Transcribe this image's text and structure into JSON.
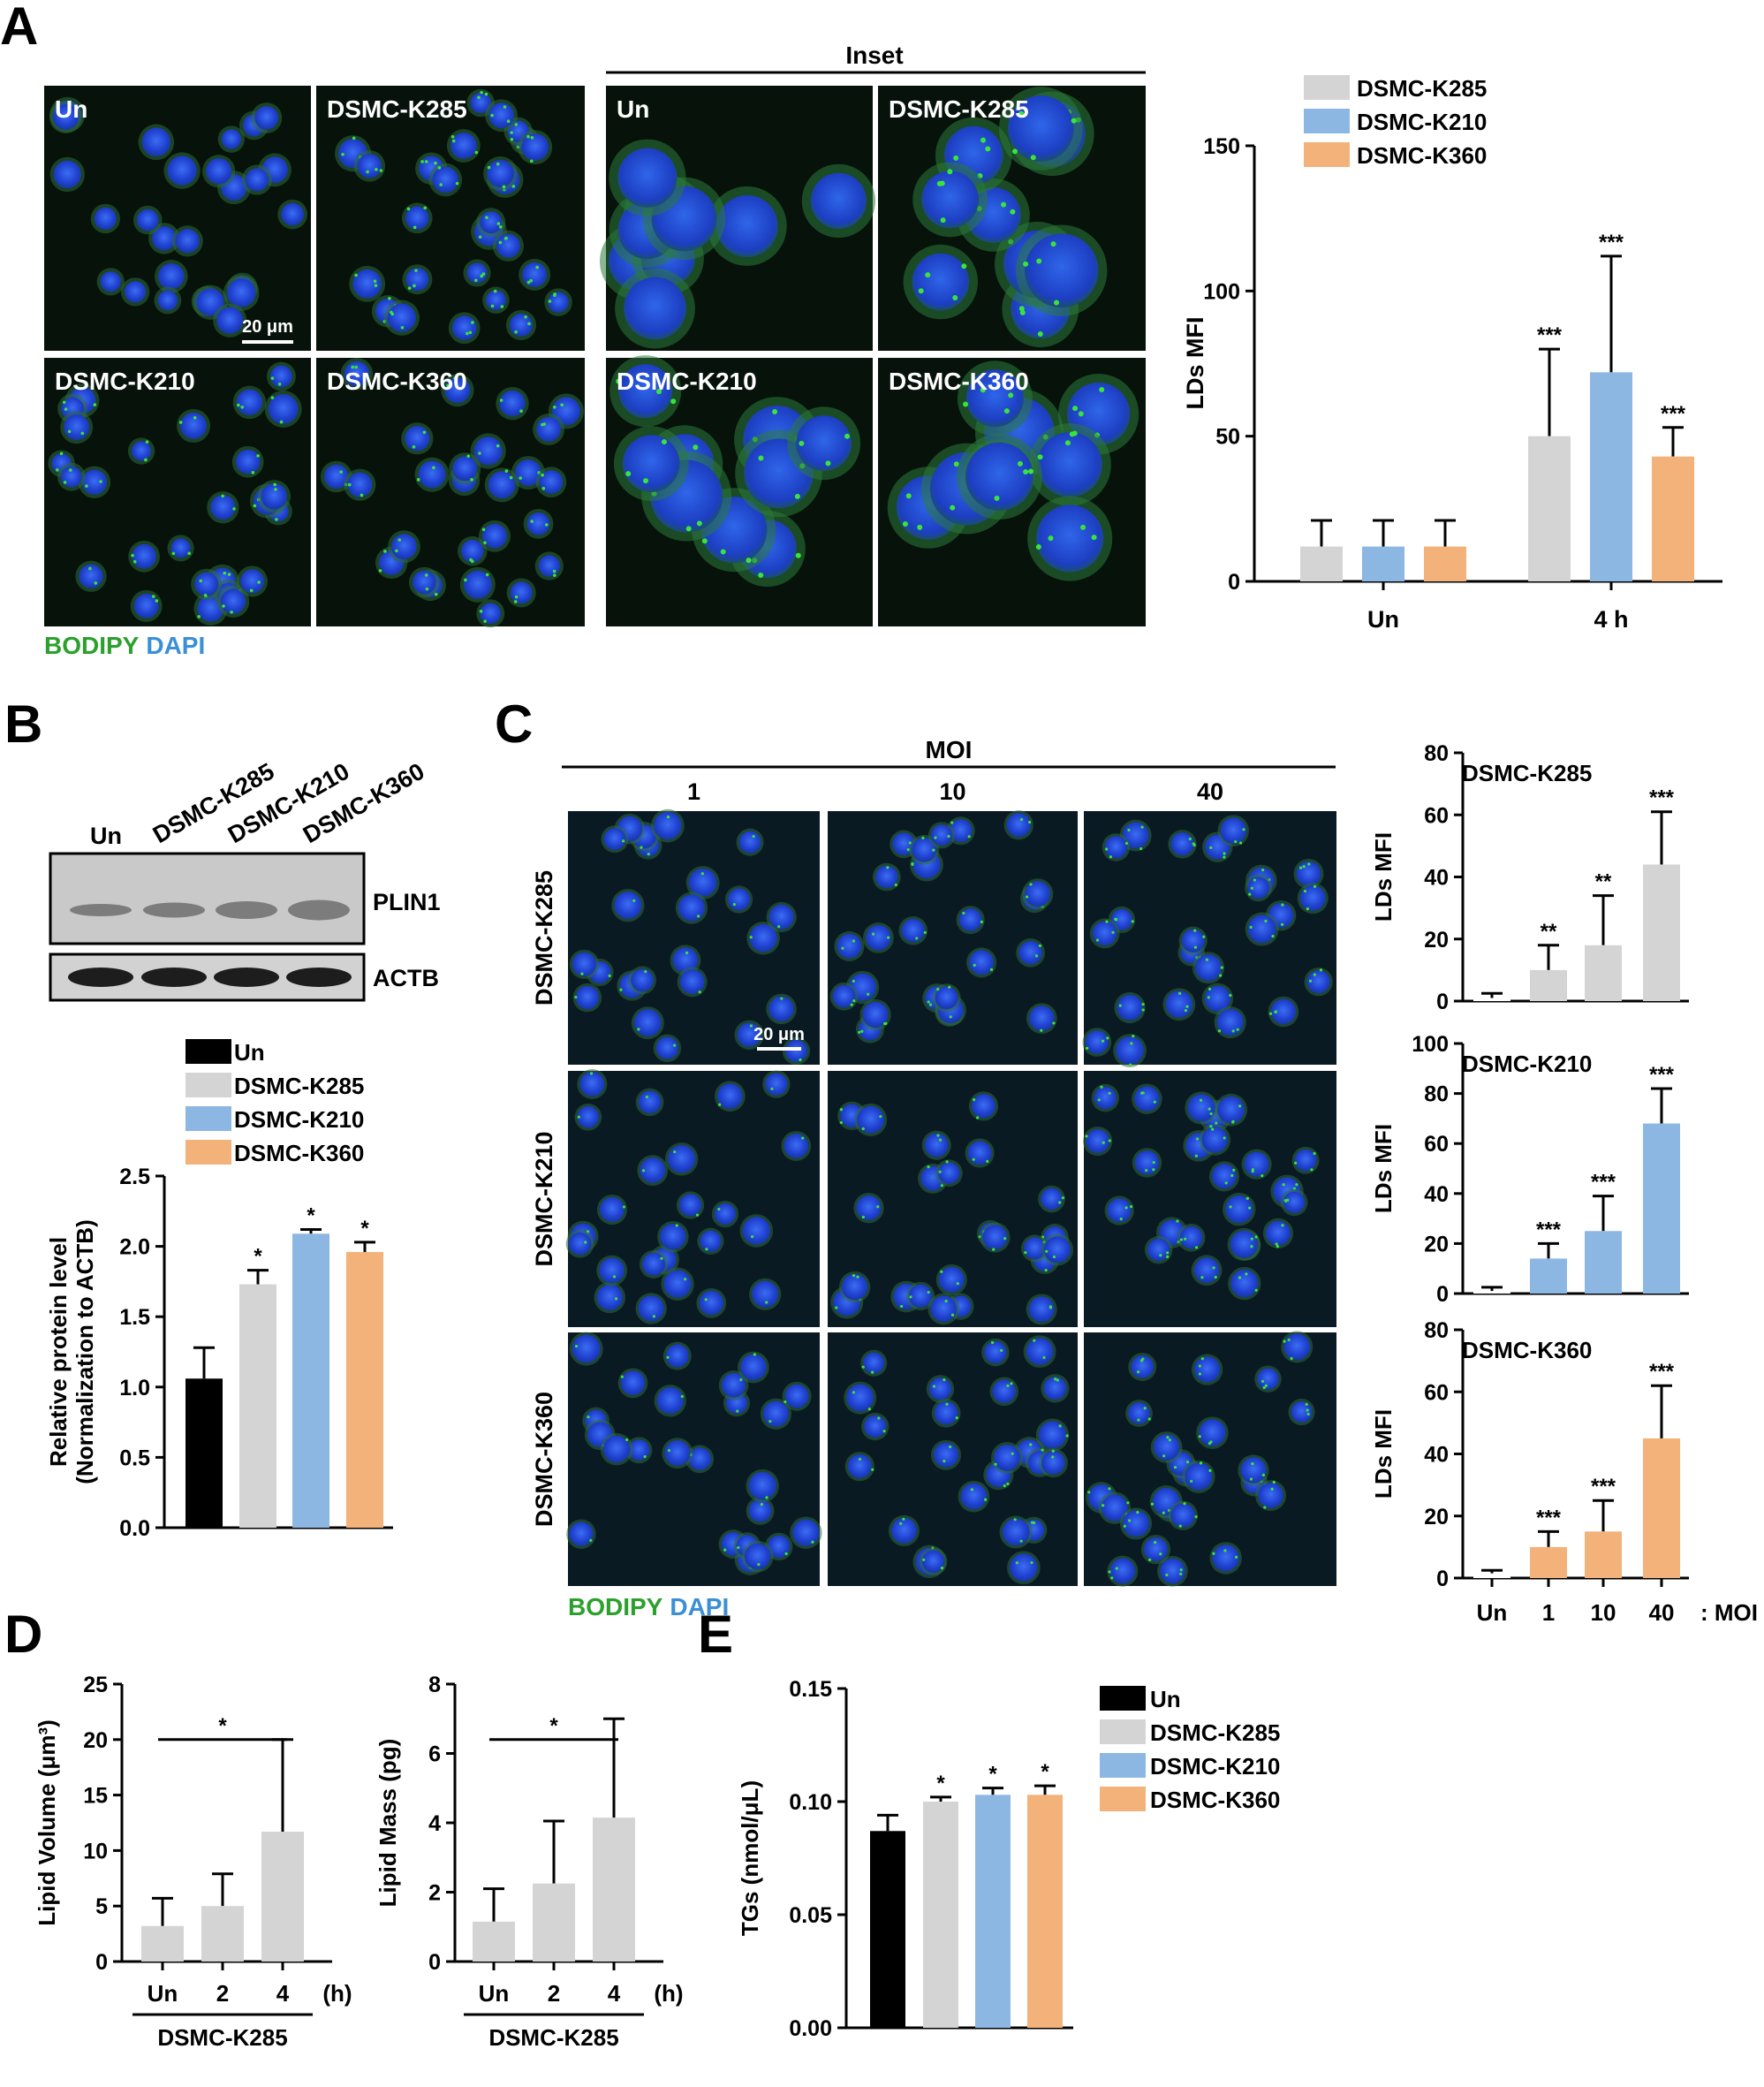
{
  "colors": {
    "un": "#000000",
    "k285": "#d4d4d4",
    "k210": "#8db7e3",
    "k360": "#f2b27a",
    "bodipy": "#2ca02c",
    "dapi": "#3a8fd6"
  },
  "panelA": {
    "letter": "A",
    "inset_title": "Inset",
    "images": [
      "Un",
      "DSMC-K285",
      "DSMC-K210",
      "DSMC-K360"
    ],
    "inset_images": [
      "Un",
      "DSMC-K285",
      "DSMC-K210",
      "DSMC-K360"
    ],
    "scale_bar": "20 μm",
    "stain_bodipy": "BODIPY",
    "stain_dapi": "DAPI"
  },
  "panelB": {
    "letter": "B",
    "lane_labels": [
      "Un",
      "DSMC-K285",
      "DSMC-K210",
      "DSMC-K360"
    ],
    "blots": [
      "PLIN1",
      "ACTB"
    ]
  },
  "panelC": {
    "letter": "C",
    "moi_title": "MOI",
    "moi_columns": [
      "1",
      "10",
      "40"
    ],
    "row_labels": [
      "DSMC-K285",
      "DSMC-K210",
      "DSMC-K360"
    ],
    "scale_bar": "20 μm",
    "stain_bodipy": "BODIPY",
    "stain_dapi": "DAPI"
  },
  "panelD": {
    "letter": "D"
  },
  "panelE": {
    "letter": "E"
  },
  "chart_data": [
    {
      "id": "A-chart",
      "type": "bar",
      "categories": [
        "Un",
        "4 h"
      ],
      "series": [
        {
          "name": "DSMC-K285",
          "values": [
            12,
            50
          ],
          "errors": [
            9,
            30
          ],
          "sig": [
            "",
            "***"
          ]
        },
        {
          "name": "DSMC-K210",
          "values": [
            12,
            72
          ],
          "errors": [
            9,
            40
          ],
          "sig": [
            "",
            "***"
          ]
        },
        {
          "name": "DSMC-K360",
          "values": [
            12,
            43
          ],
          "errors": [
            9,
            10
          ],
          "sig": [
            "",
            "***"
          ]
        }
      ],
      "ylabel": "LDs MFI",
      "yticks": [
        0,
        50,
        100,
        150
      ],
      "ylim": [
        0,
        150
      ],
      "legend": "top"
    },
    {
      "id": "B-chart",
      "type": "bar",
      "legend_entries": [
        "Un",
        "DSMC-K285",
        "DSMC-K210",
        "DSMC-K360"
      ],
      "values": [
        1.06,
        1.73,
        2.09,
        1.96
      ],
      "errors": [
        0.22,
        0.1,
        0.03,
        0.07
      ],
      "sig": [
        "",
        "*",
        "*",
        "*"
      ],
      "ylabel_line1": "Relative protein level",
      "ylabel_line2": "(Normalization to ACTB)",
      "yticks": [
        "0.0",
        "0.5",
        "1.0",
        "1.5",
        "2.0",
        "2.5"
      ],
      "ylim": [
        0,
        2.5
      ]
    },
    {
      "id": "C-chart-K285",
      "type": "bar",
      "title": "DSMC-K285",
      "categories": [
        "Un",
        "1",
        "10",
        "40"
      ],
      "values": [
        1,
        10,
        18,
        44
      ],
      "errors": [
        1.5,
        8,
        16,
        17
      ],
      "sig": [
        "",
        "**",
        "**",
        "***"
      ],
      "ylabel": "LDs MFI",
      "yticks": [
        0,
        20,
        40,
        60,
        80
      ],
      "ylim": [
        0,
        80
      ]
    },
    {
      "id": "C-chart-K210",
      "type": "bar",
      "title": "DSMC-K210",
      "categories": [
        "Un",
        "1",
        "10",
        "40"
      ],
      "values": [
        1,
        14,
        25,
        68
      ],
      "errors": [
        1.5,
        6,
        14,
        14
      ],
      "sig": [
        "",
        "***",
        "***",
        "***"
      ],
      "ylabel": "LDs MFI",
      "yticks": [
        0,
        20,
        40,
        60,
        80,
        100
      ],
      "ylim": [
        0,
        100
      ]
    },
    {
      "id": "C-chart-K360",
      "type": "bar",
      "title": "DSMC-K360",
      "categories": [
        "Un",
        "1",
        "10",
        "40"
      ],
      "xlabel_suffix": ": MOI",
      "values": [
        1.5,
        10,
        15,
        45
      ],
      "errors": [
        1,
        5,
        10,
        17
      ],
      "sig": [
        "",
        "***",
        "***",
        "***"
      ],
      "ylabel": "LDs MFI",
      "yticks": [
        0,
        20,
        40,
        60,
        80
      ],
      "ylim": [
        0,
        80
      ]
    },
    {
      "id": "D-chart-volume",
      "type": "bar",
      "categories": [
        "Un",
        "2",
        "4"
      ],
      "xunit": "(h)",
      "group_label": "DSMC-K285",
      "values": [
        3.2,
        5.0,
        11.7
      ],
      "errors": [
        2.5,
        2.9,
        8.3
      ],
      "bracket": "*",
      "ylabel": "Lipid Volume (μm³)",
      "yticks": [
        0,
        5,
        10,
        15,
        20,
        25
      ],
      "ylim": [
        0,
        25
      ]
    },
    {
      "id": "D-chart-mass",
      "type": "bar",
      "categories": [
        "Un",
        "2",
        "4"
      ],
      "xunit": "(h)",
      "group_label": "DSMC-K285",
      "values": [
        1.15,
        2.25,
        4.15
      ],
      "errors": [
        0.95,
        1.8,
        2.85
      ],
      "bracket": "*",
      "ylabel": "Lipid Mass (pg)",
      "yticks": [
        0,
        2,
        4,
        6,
        8
      ],
      "ylim": [
        0,
        8
      ]
    },
    {
      "id": "E-chart",
      "type": "bar",
      "legend_entries": [
        "Un",
        "DSMC-K285",
        "DSMC-K210",
        "DSMC-K360"
      ],
      "values": [
        0.087,
        0.1,
        0.103,
        0.103
      ],
      "errors": [
        0.007,
        0.002,
        0.003,
        0.004
      ],
      "sig": [
        "",
        "*",
        "*",
        "*"
      ],
      "ylabel": "TGs (nmol/μL)",
      "yticks": [
        "0.00",
        "0.05",
        "0.10",
        "0.15"
      ],
      "ylim": [
        0,
        0.15
      ]
    }
  ]
}
